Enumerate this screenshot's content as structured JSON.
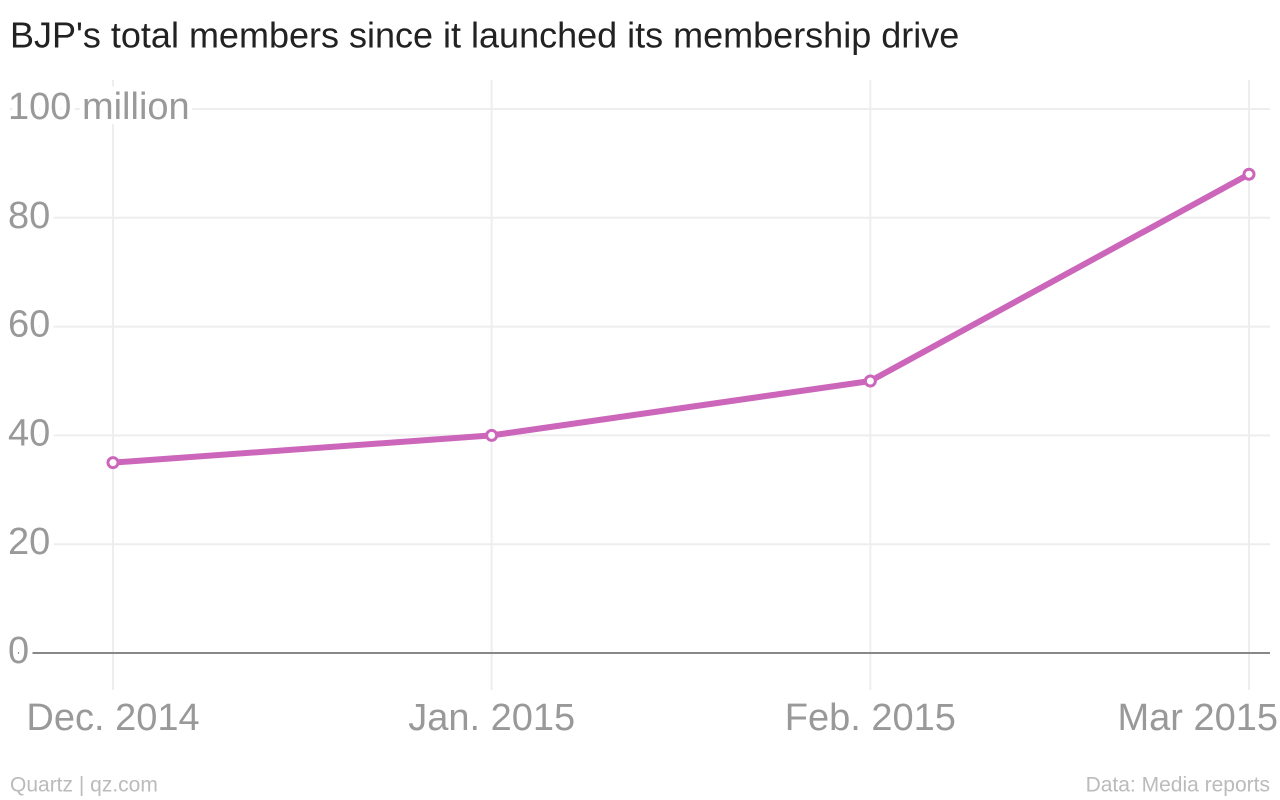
{
  "chart_data": {
    "type": "line",
    "title": "BJP's total members since it launched its membership drive",
    "categories": [
      "Dec. 2014",
      "Jan. 2015",
      "Feb. 2015",
      "Mar 2015"
    ],
    "series": [
      {
        "name": "Total members",
        "color": "#cc66bb",
        "values": [
          35,
          40,
          50,
          88
        ]
      }
    ],
    "ylim": [
      0,
      100
    ],
    "yticks": [
      0,
      20,
      40,
      60,
      80,
      {
        "value": 100,
        "label": "100 million"
      }
    ],
    "grid": true,
    "source": "Data: Media reports",
    "credit": "Quartz | qz.com"
  }
}
